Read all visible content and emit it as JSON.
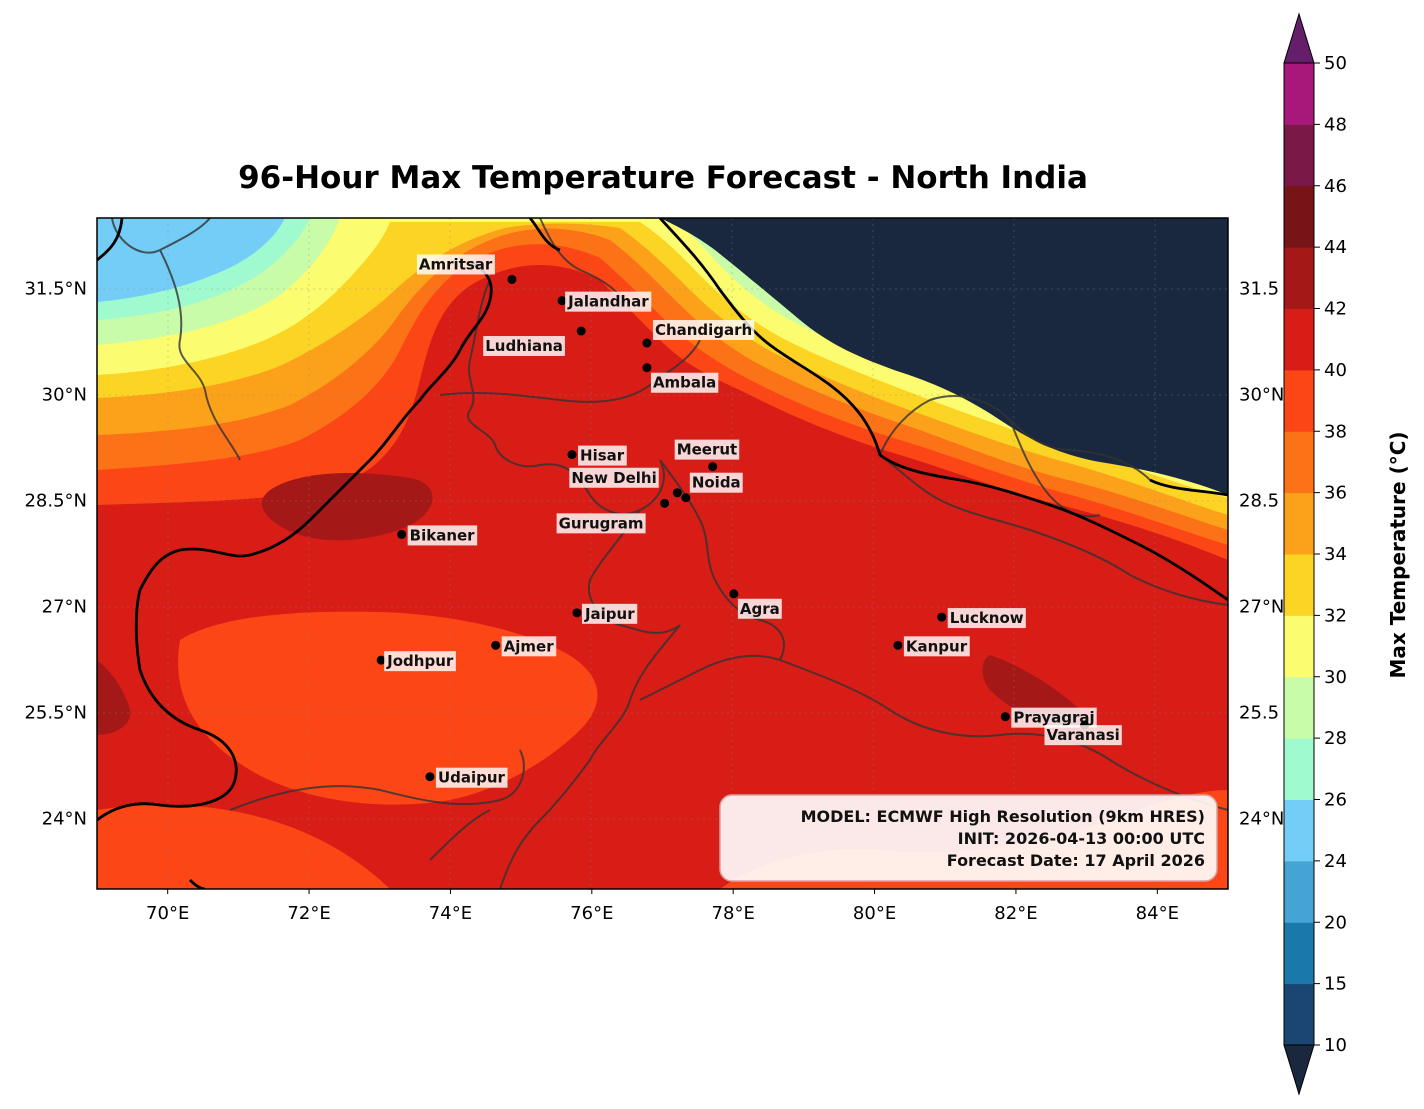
{
  "title": "96-Hour Max Temperature Forecast - North India",
  "map": {
    "lon_range": [
      69.0,
      85.0
    ],
    "lat_range": [
      23.0,
      32.5
    ],
    "lon_ticks": [
      "70°E",
      "72°E",
      "74°E",
      "76°E",
      "78°E",
      "80°E",
      "82°E",
      "84°E"
    ],
    "lat_ticks": [
      "31.5°N",
      "30°N",
      "28.5°N",
      "27°N",
      "25.5°N",
      "24°N"
    ],
    "lat_ticks_right": [
      "31.5",
      "30°N",
      "28.5",
      "27°N",
      "25.5",
      "24°N"
    ]
  },
  "cities": [
    {
      "name": "Amritsar",
      "lon": 74.87,
      "lat": 31.63
    },
    {
      "name": "Jalandhar",
      "lon": 75.58,
      "lat": 31.33
    },
    {
      "name": "Ludhiana",
      "lon": 75.85,
      "lat": 30.9
    },
    {
      "name": "Chandigarh",
      "lon": 76.78,
      "lat": 30.73
    },
    {
      "name": "Ambala",
      "lon": 76.78,
      "lat": 30.38
    },
    {
      "name": "Hisar",
      "lon": 75.72,
      "lat": 29.15
    },
    {
      "name": "Meerut",
      "lon": 77.71,
      "lat": 28.98
    },
    {
      "name": "New Delhi",
      "lon": 77.21,
      "lat": 28.61
    },
    {
      "name": "Noida",
      "lon": 77.33,
      "lat": 28.54
    },
    {
      "name": "Gurugram",
      "lon": 77.03,
      "lat": 28.46
    },
    {
      "name": "Bikaner",
      "lon": 73.31,
      "lat": 28.02
    },
    {
      "name": "Agra",
      "lon": 78.01,
      "lat": 27.18
    },
    {
      "name": "Jaipur",
      "lon": 75.79,
      "lat": 26.91
    },
    {
      "name": "Lucknow",
      "lon": 80.95,
      "lat": 26.85
    },
    {
      "name": "Ajmer",
      "lon": 74.64,
      "lat": 26.45
    },
    {
      "name": "Kanpur",
      "lon": 80.33,
      "lat": 26.45
    },
    {
      "name": "Jodhpur",
      "lon": 73.02,
      "lat": 26.24
    },
    {
      "name": "Prayagraj",
      "lon": 81.85,
      "lat": 25.44
    },
    {
      "name": "Varanasi",
      "lon": 82.97,
      "lat": 25.32
    },
    {
      "name": "Udaipur",
      "lon": 73.71,
      "lat": 24.59
    }
  ],
  "info_box": {
    "line1": "MODEL: ECMWF High Resolution (9km HRES)",
    "line2": "INIT: 2026-04-13 00:00 UTC",
    "line3": "Forecast Date: 17 April 2026"
  },
  "colorbar": {
    "label": "Max Temperature (°C)",
    "levels": [
      10,
      15,
      20,
      24,
      26,
      28,
      30,
      32,
      34,
      36,
      38,
      40,
      42,
      44,
      46,
      48,
      50
    ],
    "tick_labels": [
      "10",
      "15",
      "20",
      "24",
      "26",
      "28",
      "30",
      "32",
      "34",
      "36",
      "38",
      "40",
      "42",
      "44",
      "46",
      "48",
      "50"
    ],
    "colors": [
      "#1b4674",
      "#1a78aa",
      "#46a4d4",
      "#74cdf6",
      "#a0fad0",
      "#c8fca8",
      "#fcfc70",
      "#fcd424",
      "#fca21a",
      "#fc7216",
      "#fc4616",
      "#d81c16",
      "#a41818",
      "#761418",
      "#7a1848",
      "#a8187a"
    ],
    "under_color": "#19283f",
    "over_color": "#641e6a"
  },
  "colors": {
    "high_terrain": "#19283f",
    "hot_core": "#d81c16",
    "hottest_patch": "#a41818"
  }
}
